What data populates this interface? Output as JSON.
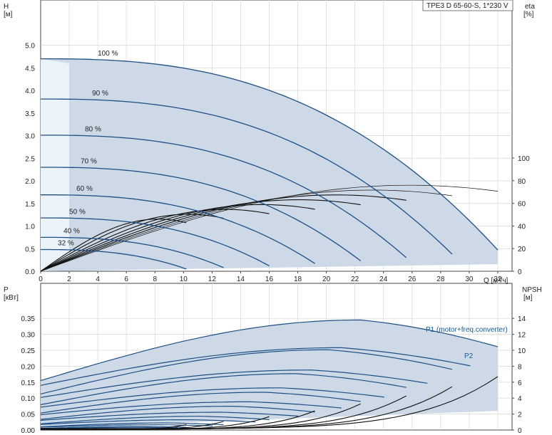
{
  "title": "TPE3 D 65-60-S, 1*230 V",
  "chart_data": [
    {
      "type": "line",
      "name": "head-curves",
      "ylabel": "H",
      "yunit": "[м]",
      "y2label": "eta",
      "y2unit": "[%]",
      "xlabel": "Q [м³/ч]",
      "xlim": [
        0,
        33
      ],
      "ylim": [
        0,
        5.5
      ],
      "y2lim": [
        0,
        100
      ],
      "xticks": [
        "0",
        "2",
        "4",
        "6",
        "8",
        "10",
        "12",
        "14",
        "16",
        "18",
        "20",
        "22",
        "24",
        "26",
        "28",
        "30",
        "32"
      ],
      "yticks": [
        "0.0",
        "0.5",
        "1.0",
        "1.5",
        "2.0",
        "2.5",
        "3.0",
        "3.5",
        "4.0",
        "4.5",
        "5.0"
      ],
      "y2ticks": [
        "0",
        "20",
        "40",
        "60",
        "80",
        "100"
      ],
      "grid": true,
      "speed_curves": [
        {
          "label": "100 %",
          "q_end": 32.0,
          "h0": 4.7,
          "h_end": 0.47
        },
        {
          "label": "90 %",
          "q_end": 28.8,
          "h0": 3.81,
          "h_end": 0.38
        },
        {
          "label": "80 %",
          "q_end": 25.6,
          "h0": 3.01,
          "h_end": 0.3
        },
        {
          "label": "70 %",
          "q_end": 22.4,
          "h0": 2.3,
          "h_end": 0.23
        },
        {
          "label": "60 %",
          "q_end": 19.2,
          "h0": 1.69,
          "h_end": 0.17
        },
        {
          "label": "50 %",
          "q_end": 16.0,
          "h0": 1.18,
          "h_end": 0.12
        },
        {
          "label": "40 %",
          "q_end": 12.8,
          "h0": 0.75,
          "h_end": 0.08
        },
        {
          "label": "32 %",
          "q_end": 10.2,
          "h0": 0.48,
          "h_end": 0.05
        }
      ],
      "efficiency_peak": 76
    },
    {
      "type": "line",
      "name": "power-npsh",
      "ylabel": "P",
      "yunit": "[кВт]",
      "y2label": "NPSH",
      "y2unit": "[м]",
      "xlim": [
        0,
        33
      ],
      "ylim": [
        0,
        0.38
      ],
      "y2lim": [
        0,
        16
      ],
      "yticks": [
        "0.00",
        "0.05",
        "0.10",
        "0.15",
        "0.20",
        "0.25",
        "0.30",
        "0.35"
      ],
      "y2ticks": [
        "0",
        "2",
        "4",
        "6",
        "8",
        "10",
        "12",
        "14"
      ],
      "series_labels": [
        "P1 (motor+freq.converter)",
        "P2"
      ],
      "p1_full_speed": [
        0.155,
        0.345,
        0.3
      ],
      "p2_full_speed": [
        0.14,
        0.258,
        0.225
      ],
      "npsh_full_speed": [
        0,
        6.5
      ]
    }
  ]
}
